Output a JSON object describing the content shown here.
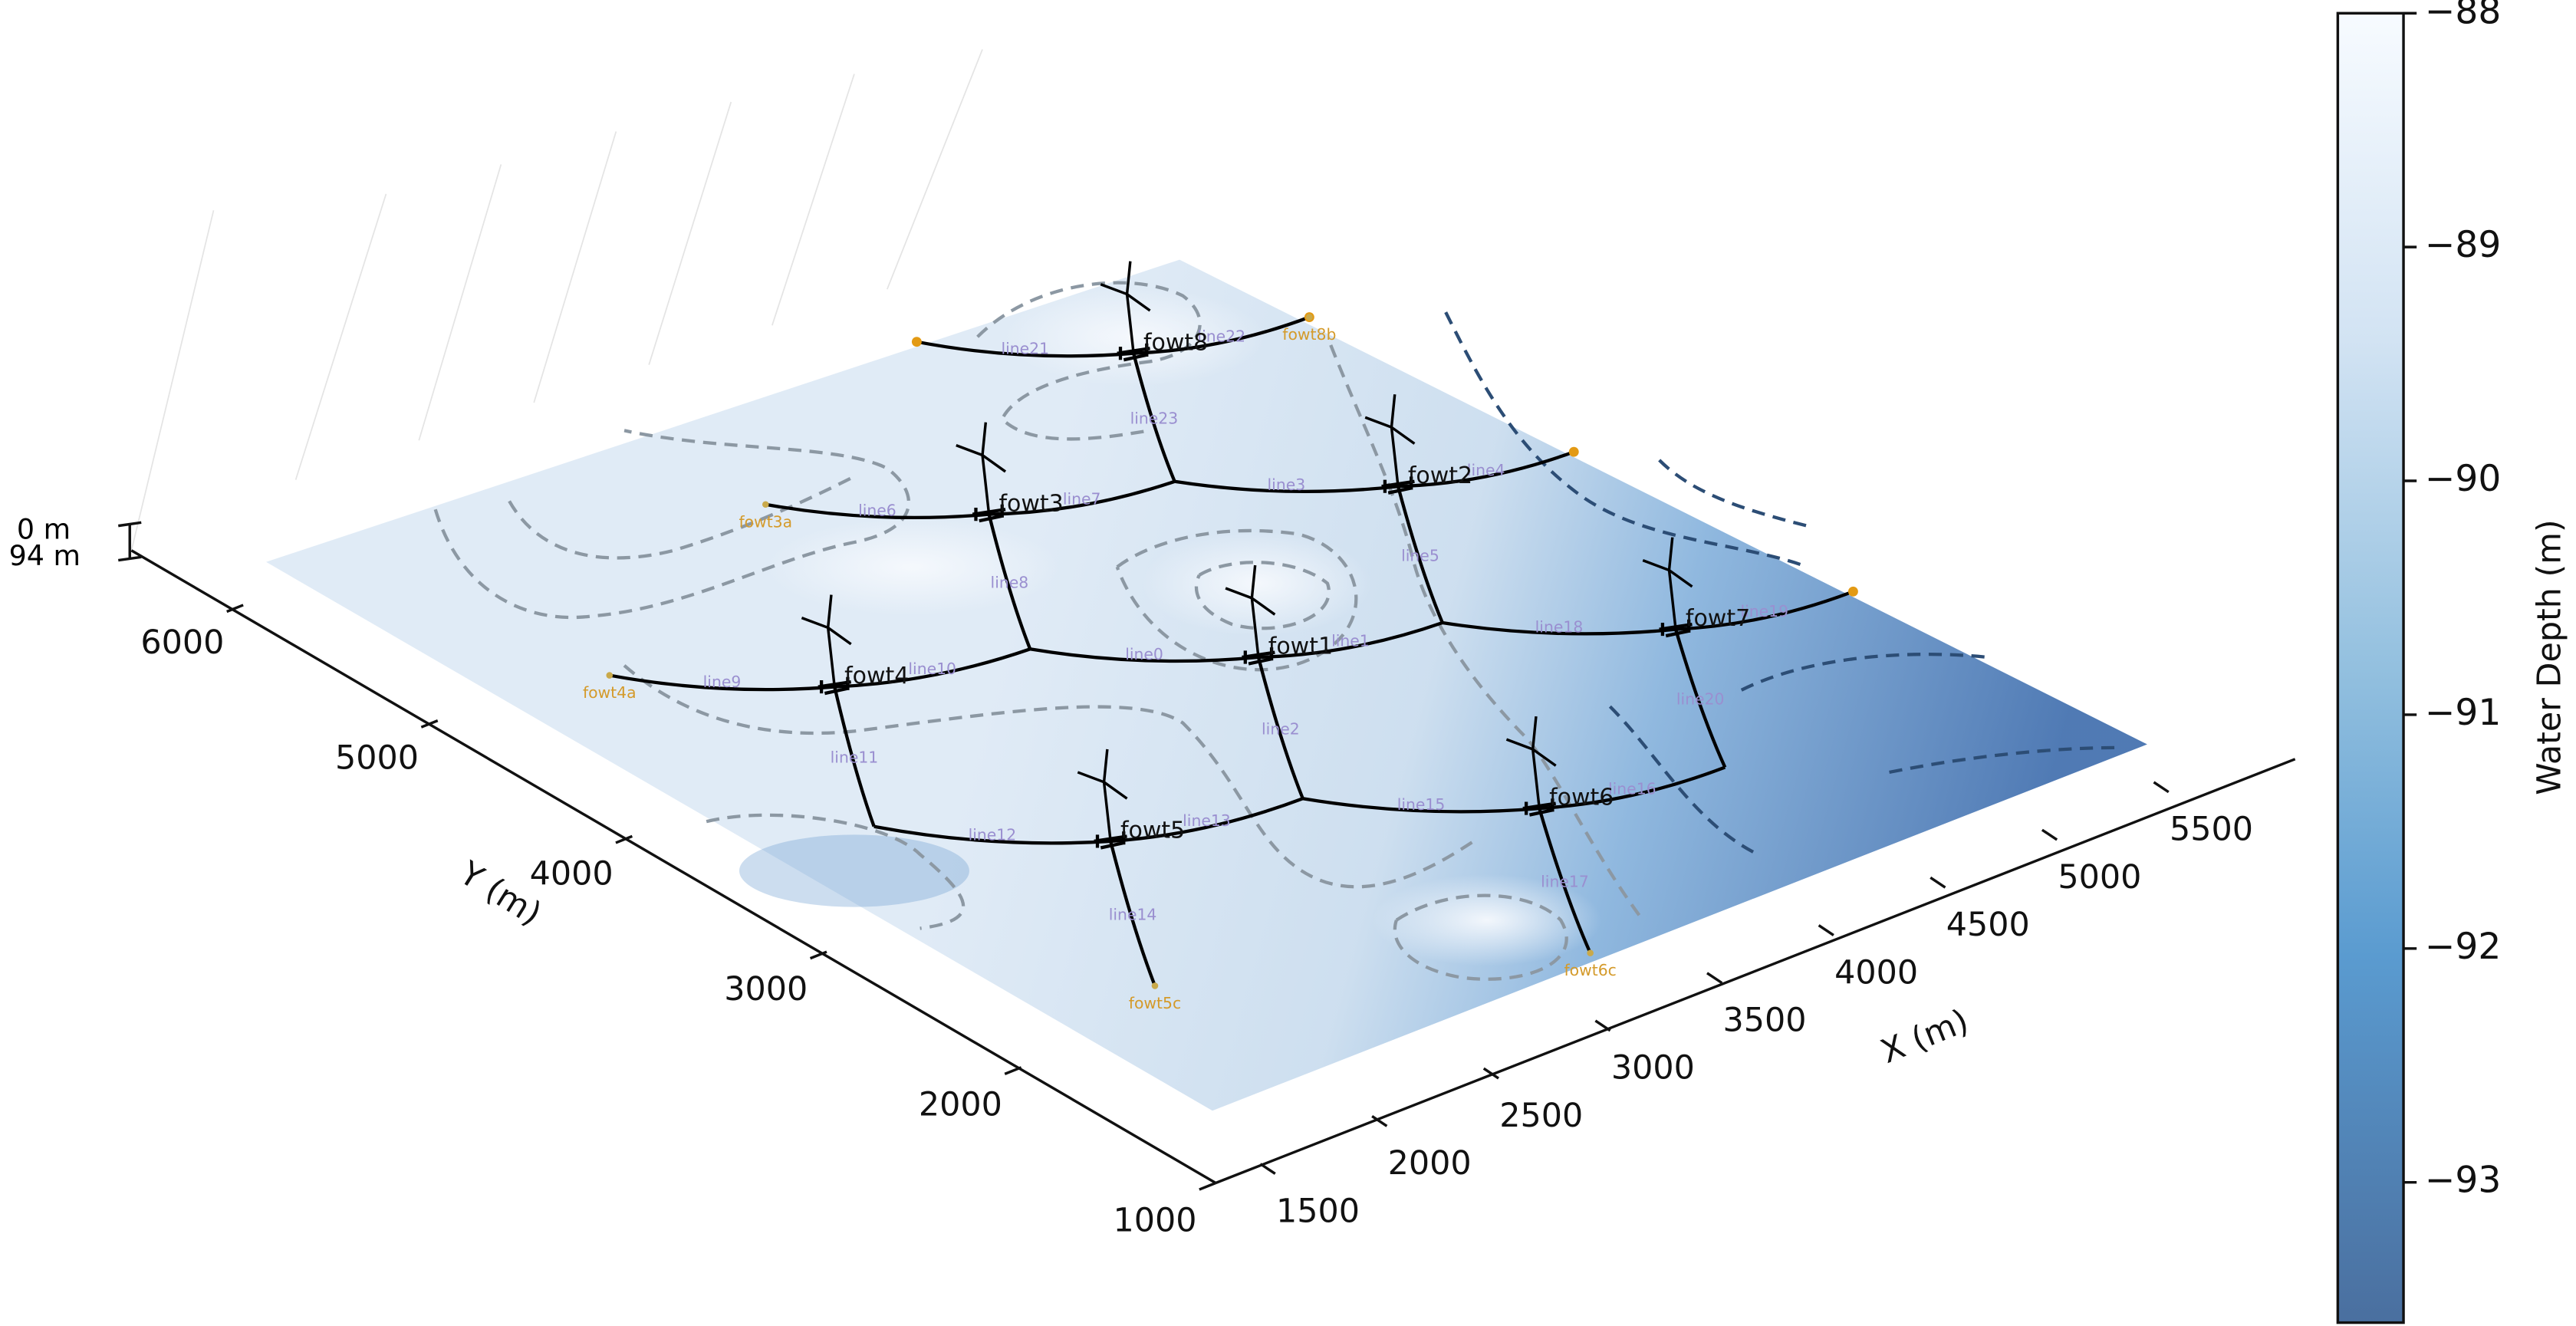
{
  "chart_data": {
    "type": "surface3d",
    "xlabel": "X (m)",
    "ylabel": "Y (m)",
    "xlim": [
      1300,
      6000
    ],
    "xticks": [
      1500,
      2000,
      2500,
      3000,
      3500,
      4000,
      4500,
      5000,
      5500
    ],
    "ylim": [
      1000,
      6600
    ],
    "yticks": [
      1000,
      2000,
      3000,
      4000,
      5000,
      6000
    ],
    "zlabels": [
      "0 m",
      "94 m"
    ],
    "colorbar": {
      "label": "Water Depth (m)",
      "clim": [
        -93.6,
        -88
      ],
      "ticks": [
        {
          "value": -88,
          "label": "−88"
        },
        {
          "value": -89,
          "label": "−89"
        },
        {
          "value": -90,
          "label": "−90"
        },
        {
          "value": -91,
          "label": "−91"
        },
        {
          "value": -92,
          "label": "−92"
        },
        {
          "value": -93,
          "label": "−93"
        }
      ]
    },
    "turbines": [
      "fowt8",
      "fowt3",
      "fowt2",
      "fowt4",
      "fowt1",
      "fowt7",
      "fowt5",
      "fowt6"
    ],
    "lines": [
      "line21",
      "line22",
      "line23",
      "line6",
      "line7",
      "line3",
      "line4",
      "line5",
      "line8",
      "line9",
      "line10",
      "line11",
      "line0",
      "line1",
      "line2",
      "line18",
      "line19",
      "line20",
      "line12",
      "line13",
      "line14",
      "line15",
      "line16",
      "line17"
    ],
    "anchors": [
      "fowt3a",
      "fowt4a",
      "fowt5c",
      "fowt6c",
      "fowt8b"
    ]
  }
}
